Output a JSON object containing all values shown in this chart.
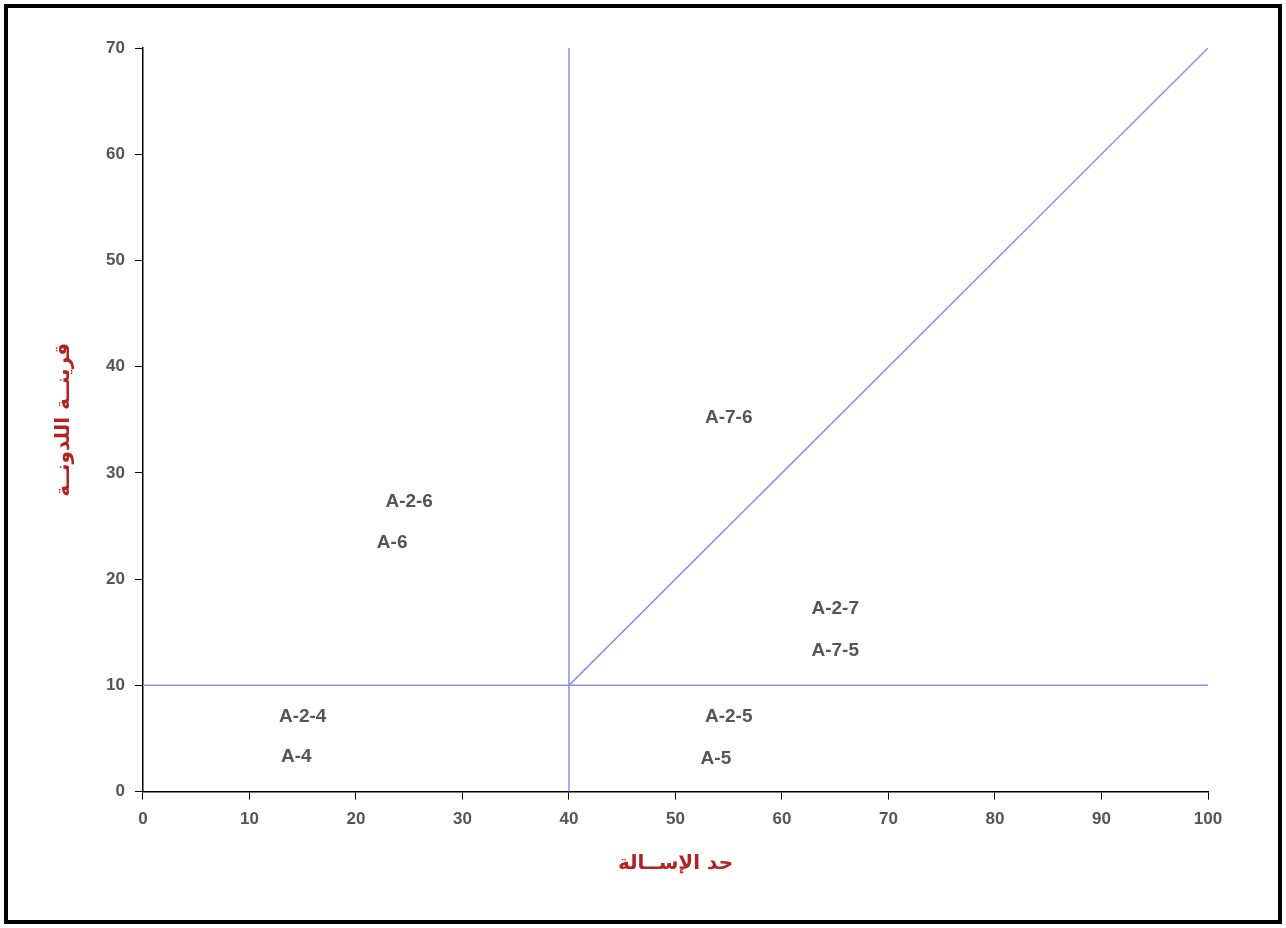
{
  "chart_data": {
    "type": "line",
    "xlabel": "حد الإســالة",
    "ylabel": "قرينــة اللدونــة",
    "x": [
      40,
      100
    ],
    "series": [
      {
        "color": "#8c8ff0",
        "values": [
          10,
          70
        ]
      }
    ],
    "xlim": [
      0,
      100
    ],
    "xticks": [
      0,
      10,
      20,
      30,
      40,
      50,
      60,
      70,
      80,
      90,
      100
    ],
    "ylim": [
      0,
      70
    ],
    "yticks": [
      0,
      10,
      20,
      30,
      40,
      50,
      60,
      70
    ],
    "grid": false,
    "legend": false,
    "marker": "none",
    "line_style": "solid",
    "ref_lines": [
      {
        "axis": "x",
        "value": 40,
        "color": "#8c8ff0"
      },
      {
        "axis": "y",
        "value": 10,
        "color": "#8c8ff0"
      }
    ],
    "annotations": [
      "A-2-6",
      "A-6",
      "A-7-6",
      "A-2-7",
      "A-7-5",
      "A-2-4",
      "A-4",
      "A-2-5",
      "A-5"
    ]
  }
}
